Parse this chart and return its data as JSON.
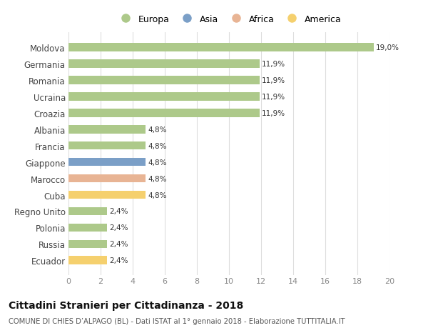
{
  "categories": [
    "Moldova",
    "Germania",
    "Romania",
    "Ucraina",
    "Croazia",
    "Albania",
    "Francia",
    "Giappone",
    "Marocco",
    "Cuba",
    "Regno Unito",
    "Polonia",
    "Russia",
    "Ecuador"
  ],
  "values": [
    19.0,
    11.9,
    11.9,
    11.9,
    11.9,
    4.8,
    4.8,
    4.8,
    4.8,
    4.8,
    2.4,
    2.4,
    2.4,
    2.4
  ],
  "labels": [
    "19,0%",
    "11,9%",
    "11,9%",
    "11,9%",
    "11,9%",
    "4,8%",
    "4,8%",
    "4,8%",
    "4,8%",
    "4,8%",
    "2,4%",
    "2,4%",
    "2,4%",
    "2,4%"
  ],
  "colors": [
    "#adc98a",
    "#adc98a",
    "#adc98a",
    "#adc98a",
    "#adc98a",
    "#adc98a",
    "#adc98a",
    "#7b9fc7",
    "#e8b494",
    "#f5d06e",
    "#adc98a",
    "#adc98a",
    "#adc98a",
    "#f5d06e"
  ],
  "legend_labels": [
    "Europa",
    "Asia",
    "Africa",
    "America"
  ],
  "legend_colors": [
    "#adc98a",
    "#7b9fc7",
    "#e8b494",
    "#f5d06e"
  ],
  "title": "Cittadini Stranieri per Cittadinanza - 2018",
  "subtitle": "COMUNE DI CHIES D’ALPAGO (BL) - Dati ISTAT al 1° gennaio 2018 - Elaborazione TUTTITALIA.IT",
  "xlim": [
    0,
    20
  ],
  "xticks": [
    0,
    2,
    4,
    6,
    8,
    10,
    12,
    14,
    16,
    18,
    20
  ],
  "background_color": "#ffffff",
  "grid_color": "#dddddd"
}
